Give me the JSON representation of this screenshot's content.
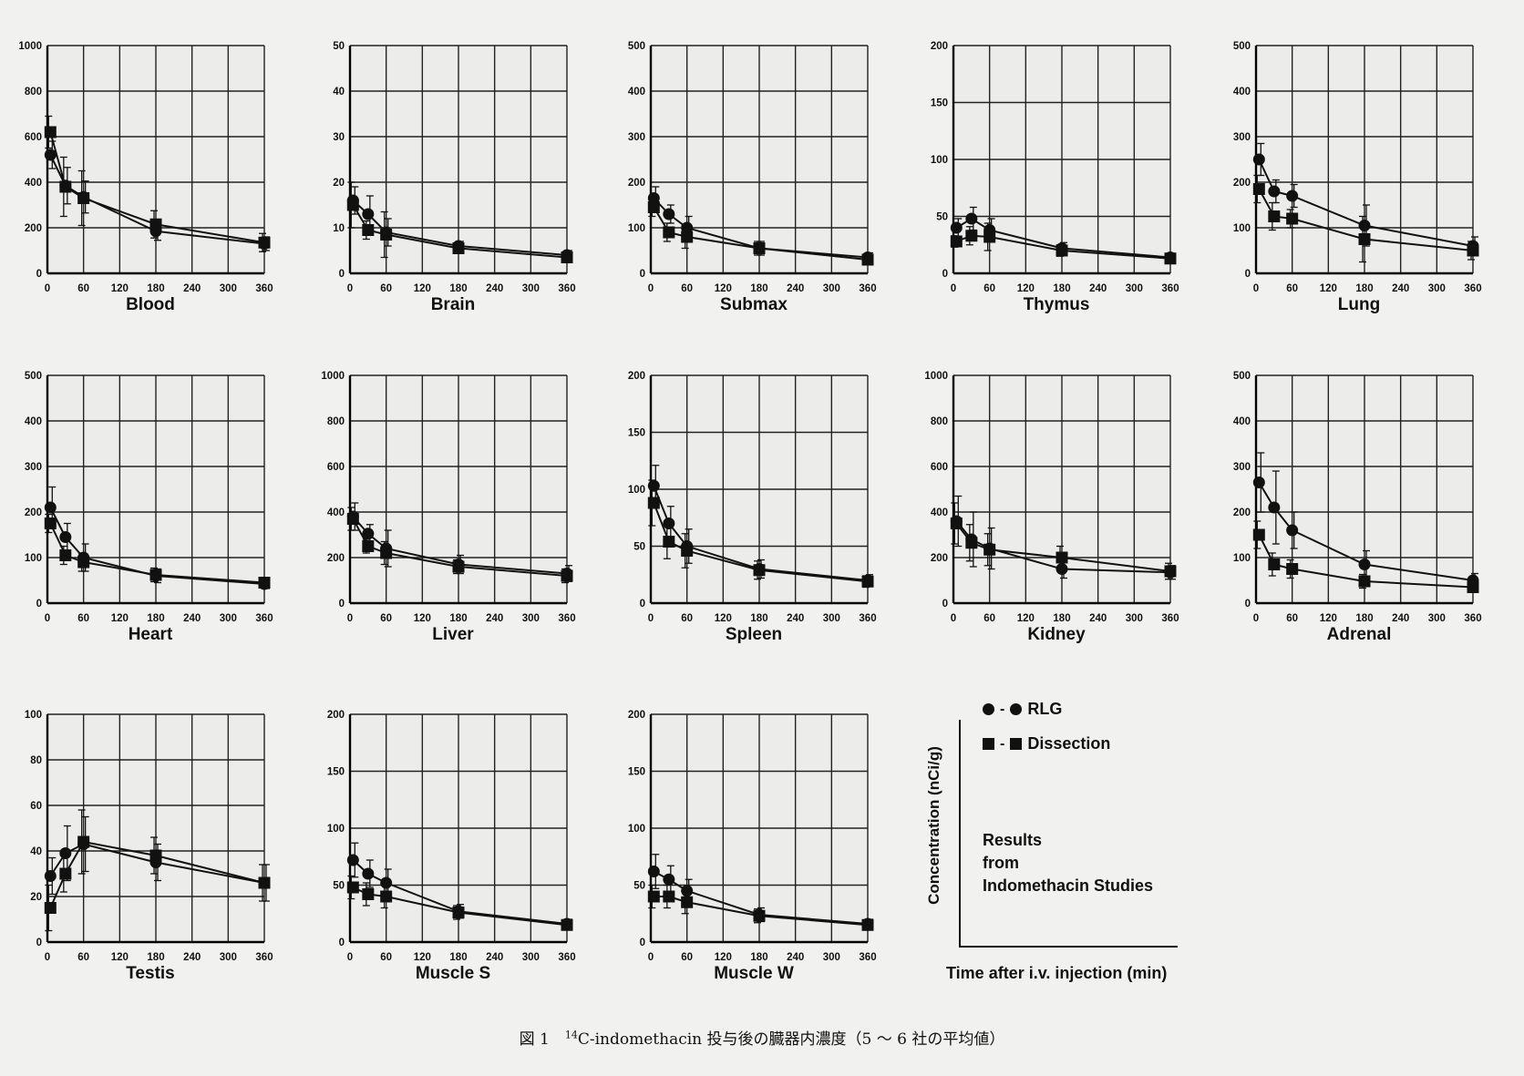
{
  "chart_data": [
    {
      "type": "line",
      "title": "Blood",
      "xlabel": "",
      "ylabel": "",
      "xlim": [
        0,
        360
      ],
      "ylim": [
        0,
        1000
      ],
      "xticks": [
        "0",
        "60",
        "120",
        "180",
        "240",
        "300",
        "360"
      ],
      "yticks": [
        "0",
        "200",
        "400",
        "600",
        "800",
        "1000"
      ],
      "x": [
        5,
        30,
        60,
        180,
        360
      ],
      "series": [
        {
          "name": "RLG",
          "values": [
            520,
            385,
            335,
            185,
            130
          ],
          "err": [
            60,
            80,
            70,
            40,
            30
          ]
        },
        {
          "name": "Dissection",
          "values": [
            620,
            380,
            330,
            215,
            135
          ],
          "err": [
            70,
            130,
            120,
            60,
            40
          ]
        }
      ]
    },
    {
      "type": "line",
      "title": "Brain",
      "xlabel": "",
      "ylabel": "",
      "xlim": [
        0,
        360
      ],
      "ylim": [
        0,
        50
      ],
      "xticks": [
        "0",
        "60",
        "120",
        "180",
        "240",
        "300",
        "360"
      ],
      "yticks": [
        "0",
        "10",
        "20",
        "30",
        "40",
        "50"
      ],
      "x": [
        5,
        30,
        60,
        180,
        360
      ],
      "series": [
        {
          "name": "RLG",
          "values": [
            16,
            13,
            9,
            6,
            4
          ],
          "err": [
            3,
            4,
            3,
            1,
            1
          ]
        },
        {
          "name": "Dissection",
          "values": [
            15,
            9.5,
            8.5,
            5.5,
            3.5
          ],
          "err": [
            5,
            2,
            5,
            1,
            1
          ]
        }
      ]
    },
    {
      "type": "line",
      "title": "Submax",
      "xlabel": "",
      "ylabel": "",
      "xlim": [
        0,
        360
      ],
      "ylim": [
        0,
        500
      ],
      "xticks": [
        "0",
        "60",
        "120",
        "180",
        "240",
        "300",
        "360"
      ],
      "yticks": [
        "0",
        "100",
        "200",
        "300",
        "400",
        "500"
      ],
      "x": [
        5,
        30,
        60,
        180,
        360
      ],
      "series": [
        {
          "name": "RLG",
          "values": [
            165,
            130,
            100,
            55,
            35
          ],
          "err": [
            25,
            20,
            25,
            15,
            10
          ]
        },
        {
          "name": "Dissection",
          "values": [
            145,
            90,
            80,
            55,
            30
          ],
          "err": [
            20,
            20,
            25,
            15,
            10
          ]
        }
      ]
    },
    {
      "type": "line",
      "title": "Thymus",
      "xlabel": "",
      "ylabel": "",
      "xlim": [
        0,
        360
      ],
      "ylim": [
        0,
        200
      ],
      "xticks": [
        "0",
        "60",
        "120",
        "180",
        "240",
        "300",
        "360"
      ],
      "yticks": [
        "0",
        "50",
        "100",
        "150",
        "200"
      ],
      "x": [
        5,
        30,
        60,
        180,
        360
      ],
      "series": [
        {
          "name": "RLG",
          "values": [
            40,
            48,
            38,
            22,
            14
          ],
          "err": [
            8,
            10,
            10,
            5,
            3
          ]
        },
        {
          "name": "Dissection",
          "values": [
            28,
            33,
            32,
            20,
            13
          ],
          "err": [
            5,
            8,
            12,
            5,
            3
          ]
        }
      ]
    },
    {
      "type": "line",
      "title": "Lung",
      "xlabel": "",
      "ylabel": "",
      "xlim": [
        0,
        360
      ],
      "ylim": [
        0,
        500
      ],
      "xticks": [
        "0",
        "60",
        "120",
        "180",
        "240",
        "300",
        "360"
      ],
      "yticks": [
        "0",
        "100",
        "200",
        "300",
        "400",
        "500"
      ],
      "x": [
        5,
        30,
        60,
        180,
        360
      ],
      "series": [
        {
          "name": "RLG",
          "values": [
            250,
            180,
            170,
            105,
            60
          ],
          "err": [
            35,
            25,
            25,
            45,
            20
          ]
        },
        {
          "name": "Dissection",
          "values": [
            185,
            125,
            120,
            75,
            50
          ],
          "err": [
            30,
            30,
            20,
            50,
            20
          ]
        }
      ]
    },
    {
      "type": "line",
      "title": "Heart",
      "xlabel": "",
      "ylabel": "",
      "xlim": [
        0,
        360
      ],
      "ylim": [
        0,
        500
      ],
      "xticks": [
        "0",
        "60",
        "120",
        "180",
        "240",
        "300",
        "360"
      ],
      "yticks": [
        "0",
        "100",
        "200",
        "300",
        "400",
        "500"
      ],
      "x": [
        5,
        30,
        60,
        180,
        360
      ],
      "series": [
        {
          "name": "RLG",
          "values": [
            210,
            145,
            100,
            60,
            42
          ],
          "err": [
            45,
            30,
            30,
            15,
            10
          ]
        },
        {
          "name": "Dissection",
          "values": [
            175,
            105,
            90,
            62,
            45
          ],
          "err": [
            20,
            20,
            20,
            15,
            10
          ]
        }
      ]
    },
    {
      "type": "line",
      "title": "Liver",
      "xlabel": "",
      "ylabel": "",
      "xlim": [
        0,
        360
      ],
      "ylim": [
        0,
        1000
      ],
      "xticks": [
        "0",
        "60",
        "120",
        "180",
        "240",
        "300",
        "360"
      ],
      "yticks": [
        "0",
        "200",
        "400",
        "600",
        "800",
        "1000"
      ],
      "x": [
        5,
        30,
        60,
        180,
        360
      ],
      "series": [
        {
          "name": "RLG",
          "values": [
            380,
            305,
            240,
            170,
            130
          ],
          "err": [
            60,
            40,
            80,
            40,
            35
          ]
        },
        {
          "name": "Dissection",
          "values": [
            370,
            250,
            220,
            160,
            120
          ],
          "err": [
            50,
            30,
            50,
            30,
            30
          ]
        }
      ]
    },
    {
      "type": "line",
      "title": "Spleen",
      "xlabel": "",
      "ylabel": "",
      "xlim": [
        0,
        360
      ],
      "ylim": [
        0,
        200
      ],
      "xticks": [
        "0",
        "60",
        "120",
        "180",
        "240",
        "300",
        "360"
      ],
      "yticks": [
        "0",
        "50",
        "100",
        "150",
        "200"
      ],
      "x": [
        5,
        30,
        60,
        180,
        360
      ],
      "series": [
        {
          "name": "RLG",
          "values": [
            103,
            70,
            50,
            30,
            20
          ],
          "err": [
            18,
            15,
            15,
            8,
            5
          ]
        },
        {
          "name": "Dissection",
          "values": [
            88,
            54,
            46,
            29,
            19
          ],
          "err": [
            20,
            15,
            15,
            8,
            5
          ]
        }
      ]
    },
    {
      "type": "line",
      "title": "Kidney",
      "xlabel": "",
      "ylabel": "",
      "xlim": [
        0,
        360
      ],
      "ylim": [
        0,
        1000
      ],
      "xticks": [
        "0",
        "60",
        "120",
        "180",
        "240",
        "300",
        "360"
      ],
      "yticks": [
        "0",
        "200",
        "400",
        "600",
        "800",
        "1000"
      ],
      "x": [
        5,
        30,
        60,
        180,
        360
      ],
      "series": [
        {
          "name": "RLG",
          "values": [
            360,
            280,
            240,
            150,
            135
          ],
          "err": [
            110,
            120,
            90,
            40,
            30
          ]
        },
        {
          "name": "Dissection",
          "values": [
            350,
            265,
            235,
            200,
            140
          ],
          "err": [
            90,
            80,
            70,
            50,
            35
          ]
        }
      ]
    },
    {
      "type": "line",
      "title": "Adrenal",
      "xlabel": "",
      "ylabel": "",
      "xlim": [
        0,
        360
      ],
      "ylim": [
        0,
        500
      ],
      "xticks": [
        "0",
        "60",
        "120",
        "180",
        "240",
        "300",
        "360"
      ],
      "yticks": [
        "0",
        "100",
        "200",
        "300",
        "400",
        "500"
      ],
      "x": [
        5,
        30,
        60,
        180,
        360
      ],
      "series": [
        {
          "name": "RLG",
          "values": [
            265,
            210,
            160,
            85,
            50
          ],
          "err": [
            65,
            80,
            40,
            30,
            15
          ]
        },
        {
          "name": "Dissection",
          "values": [
            150,
            85,
            75,
            48,
            35
          ],
          "err": [
            30,
            25,
            20,
            15,
            10
          ]
        }
      ]
    },
    {
      "type": "line",
      "title": "Testis",
      "xlabel": "",
      "ylabel": "",
      "xlim": [
        0,
        360
      ],
      "ylim": [
        0,
        100
      ],
      "xticks": [
        "0",
        "60",
        "120",
        "180",
        "240",
        "300",
        "360"
      ],
      "yticks": [
        "0",
        "20",
        "40",
        "60",
        "80",
        "100"
      ],
      "x": [
        5,
        30,
        60,
        180,
        360
      ],
      "series": [
        {
          "name": "RLG",
          "values": [
            29,
            39,
            43,
            35,
            26
          ],
          "err": [
            8,
            12,
            12,
            8,
            8
          ]
        },
        {
          "name": "Dissection",
          "values": [
            15,
            30,
            44,
            38,
            26
          ],
          "err": [
            10,
            8,
            14,
            8,
            8
          ]
        }
      ]
    },
    {
      "type": "line",
      "title": "Muscle S",
      "xlabel": "",
      "ylabel": "",
      "xlim": [
        0,
        360
      ],
      "ylim": [
        0,
        200
      ],
      "xticks": [
        "0",
        "60",
        "120",
        "180",
        "240",
        "300",
        "360"
      ],
      "yticks": [
        "0",
        "50",
        "100",
        "150",
        "200"
      ],
      "x": [
        5,
        30,
        60,
        180,
        360
      ],
      "series": [
        {
          "name": "RLG",
          "values": [
            72,
            60,
            52,
            27,
            16
          ],
          "err": [
            15,
            12,
            12,
            6,
            4
          ]
        },
        {
          "name": "Dissection",
          "values": [
            48,
            42,
            40,
            26,
            15
          ],
          "err": [
            10,
            10,
            10,
            6,
            4
          ]
        }
      ]
    },
    {
      "type": "line",
      "title": "Muscle W",
      "xlabel": "",
      "ylabel": "",
      "xlim": [
        0,
        360
      ],
      "ylim": [
        0,
        200
      ],
      "xticks": [
        "0",
        "60",
        "120",
        "180",
        "240",
        "300",
        "360"
      ],
      "yticks": [
        "0",
        "50",
        "100",
        "150",
        "200"
      ],
      "x": [
        5,
        30,
        60,
        180,
        360
      ],
      "series": [
        {
          "name": "RLG",
          "values": [
            62,
            55,
            45,
            24,
            16
          ],
          "err": [
            15,
            12,
            10,
            6,
            4
          ]
        },
        {
          "name": "Dissection",
          "values": [
            40,
            40,
            35,
            23,
            15
          ],
          "err": [
            10,
            10,
            10,
            6,
            4
          ]
        }
      ]
    }
  ],
  "legend": {
    "ylabel": "Concentration (nCi/g)",
    "xlabel": "Time after i.v. injection (min)",
    "items": [
      {
        "marker": "circle",
        "label": "RLG",
        "connector": "●  - ●"
      },
      {
        "marker": "square",
        "label": "Dissection",
        "connector": "■  - ■"
      }
    ],
    "note": "Results\nfrom\nIndomethacin Studies"
  },
  "caption": {
    "prefix": "図 1　",
    "sup": "14",
    "text": "C-indomethacin 投与後の臓器内濃度（5 ～ 6 社の平均値）"
  },
  "colors": {
    "ink": "#111111",
    "paper": "#f1f1ef",
    "grid": "#1a1a1a"
  }
}
